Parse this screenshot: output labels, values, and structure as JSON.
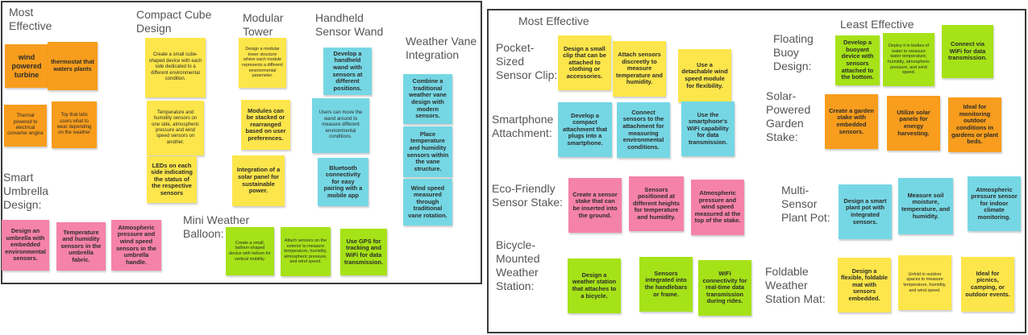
{
  "left_board": {
    "labels": {
      "most_effective": "Most\nEffective",
      "compact_cube": "Compact Cube\nDesign",
      "modular_tower": "Modular\nTower",
      "handheld_wand": "Handheld\nSensor Wand",
      "weather_vane": "Weather Vane\nIntegration",
      "smart_umbrella": "Smart\nUmbrella\nDesign:",
      "mini_balloon": "Mini Weather\nBalloon:"
    },
    "notes": {
      "wind_turbine": "wind powered turbine",
      "thermostat": "thermostat that waters plants",
      "thermal_engine": "Thermal powered to electrical converter engine",
      "toy": "Toy that tells users what to wear depending on the weather",
      "cube_small_device": "Create a small cube-shaped device with each side dedicated to a different environmental condition.",
      "cube_sensors": "Temperature and humidity sensors on one side, atmospheric pressure and wind speed sensors on another.",
      "cube_leds": "LEDs on each side indicating the status of the respective sensors",
      "tower_design": "Design a modular tower structure where each module represents a different environmental parameter.",
      "tower_modules": "Modules can be stacked or rearranged based on user preferences.",
      "tower_solar": "Integration of a solar panel for sustainable power.",
      "wand_develop": "Develop a handheld wand with sensors at different positions.",
      "wand_move": "Users can move the wand around to measure different environmental conditions.",
      "wand_bluetooth": "Bluetooth connectivity for easy pairing with a mobile app",
      "vane_combine": "Combine a traditional weather vane design with modern sensors.",
      "vane_place": "Place temperature and humidity sensors within the vane structure.",
      "vane_wind": "Wind speed measured through traditional vane rotation.",
      "umbrella_design": "Design an umbrella with embedded environmental sensors.",
      "umbrella_temp": "Temperature and humidity sensors in the umbrella fabric.",
      "umbrella_atmos": "Atmospheric pressure and wind speed sensors in the umbrella handle.",
      "balloon_create": "Create a small, balloon-shaped device with helium for vertical mobility.",
      "balloon_attach": "Attach sensors on the exterior to measure temperature, humidity, atmospheric pressure, and wind speed.",
      "balloon_gps": "Use GPS for tracking and WiFi for data transmission."
    }
  },
  "right_board": {
    "labels": {
      "most_effective": "Most Effective",
      "least_effective": "Least Effective",
      "pocket_clip": "Pocket-\nSized\nSensor Clip:",
      "smartphone": "Smartphone\nAttachment:",
      "eco_stake": "Eco-Friendly\nSensor Stake:",
      "bicycle": "Bicycle-\nMounted\nWeather\nStation:",
      "floating_buoy": "Floating\nBuoy\nDesign:",
      "solar_stake": "Solar-\nPowered\nGarden\nStake:",
      "plant_pot": "Multi-\nSensor\nPlant Pot:",
      "foldable_mat": "Foldable\nWeather\nStation Mat:"
    },
    "notes": {
      "clip_design": "Design a small clip that can be attached to clothing or accessories.",
      "clip_attach": "Attach sensors discreetly to measure temperature and humidity.",
      "clip_detachable": "Use a detachable wind speed module for flexibility.",
      "phone_develop": "Develop a compact attachment that plugs into a smartphone.",
      "phone_connect": "Connect sensors to the attachment for measuring environmental conditions.",
      "phone_wifi": "Use the smartphone's WiFi capability for data transmission.",
      "stake_create": "Create a sensor stake that can be inserted into the ground.",
      "stake_heights": "Sensors positioned at different heights for temperature and humidity.",
      "stake_atmos": "Atmospheric pressure and wind speed measured at the top of the stake.",
      "bike_design": "Design a weather station that attaches to a bicycle.",
      "bike_sensors": "Sensors integrated into the handlebars or frame.",
      "bike_wifi": "WiFi connectivity for real-time data transmission during rides.",
      "buoy_develop": "Develop a buoyant device with sensors attached to the bottom.",
      "buoy_deploy": "Deploy it in bodies of water to measure water temperature, humidity, atmospheric pressure, and wind speed.",
      "buoy_connect": "Connect via WiFi for data transmission.",
      "solar_create": "Create a garden stake with embedded sensors.",
      "solar_panels": "Utilize solar panels for energy harvesting.",
      "solar_ideal": "Ideal for monitoring outdoor conditions in gardens or plant beds.",
      "pot_design": "Design a smart plant pot with integrated sensors.",
      "pot_measure": "Measure soil moisture, temperature, and humidity.",
      "pot_atmos": "Atmospheric pressure sensor for indoor climate monitoring.",
      "mat_design": "Design a flexible, foldable mat with sensors embedded.",
      "mat_unfold": "Unfold in outdoor spaces to measure temperature, humidity, and wind speed.",
      "mat_ideal": "Ideal for picnics, camping, or outdoor events."
    }
  }
}
